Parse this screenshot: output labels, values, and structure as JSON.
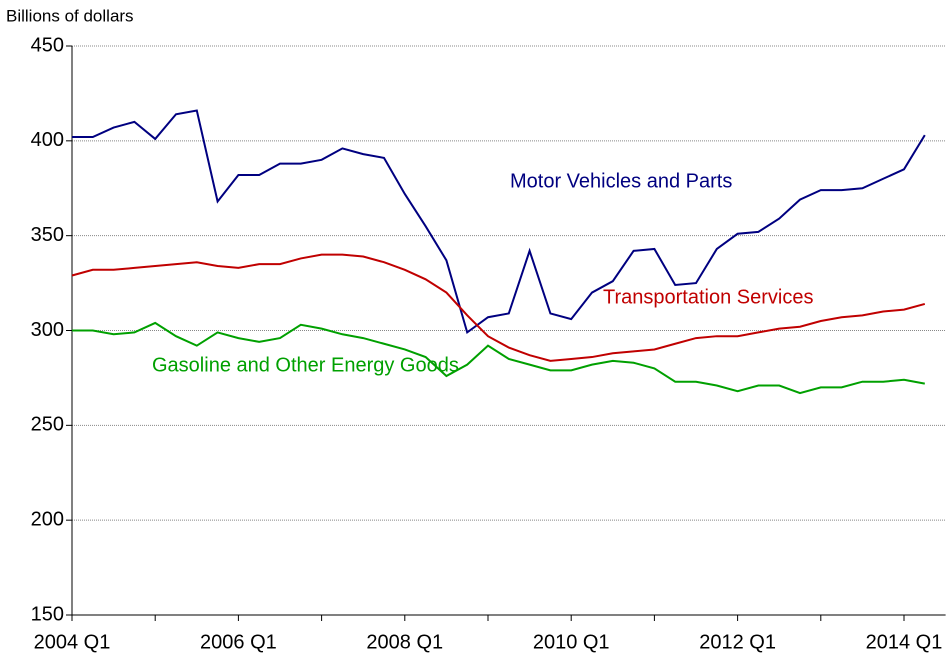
{
  "chart_data": {
    "type": "line",
    "y_label": "Billions of dollars",
    "categories": [
      "2004 Q1",
      null,
      null,
      null,
      null,
      null,
      null,
      null,
      "2006 Q1",
      null,
      null,
      null,
      null,
      null,
      null,
      null,
      "2008 Q1",
      null,
      null,
      null,
      null,
      null,
      null,
      null,
      "2010 Q1",
      null,
      null,
      null,
      null,
      null,
      null,
      null,
      "2012 Q1",
      null,
      null,
      null,
      null,
      null,
      null,
      null,
      "2014 Q1",
      null
    ],
    "ylim": [
      150,
      450
    ],
    "yticks": [
      150,
      200,
      250,
      300,
      350,
      400,
      450
    ],
    "grid": true,
    "series": [
      {
        "name": "Motor Vehicles and Parts",
        "color": "#000080",
        "values": [
          402,
          402,
          407,
          410,
          401,
          414,
          416,
          368,
          382,
          382,
          388,
          388,
          390,
          396,
          393,
          391,
          372,
          355,
          337,
          299,
          307,
          309,
          342,
          309,
          306,
          320,
          326,
          342,
          343,
          324,
          325,
          343,
          351,
          352,
          359,
          369,
          374,
          374,
          375,
          380,
          385,
          403
        ]
      },
      {
        "name": "Transportation Services",
        "color": "#c00000",
        "values": [
          329,
          332,
          332,
          333,
          334,
          335,
          336,
          334,
          333,
          335,
          335,
          338,
          340,
          340,
          339,
          336,
          332,
          327,
          320,
          308,
          297,
          291,
          287,
          284,
          285,
          286,
          288,
          289,
          290,
          293,
          296,
          297,
          297,
          299,
          301,
          302,
          305,
          307,
          308,
          310,
          311,
          314
        ]
      },
      {
        "name": "Gasoline and Other Energy Goods",
        "color": "#00a000",
        "values": [
          300,
          300,
          298,
          299,
          304,
          297,
          292,
          299,
          296,
          294,
          296,
          303,
          301,
          298,
          296,
          293,
          290,
          286,
          276,
          282,
          292,
          285,
          282,
          279,
          279,
          282,
          284,
          283,
          280,
          273,
          273,
          271,
          268,
          271,
          271,
          267,
          270,
          270,
          273,
          273,
          274,
          272
        ]
      }
    ]
  }
}
